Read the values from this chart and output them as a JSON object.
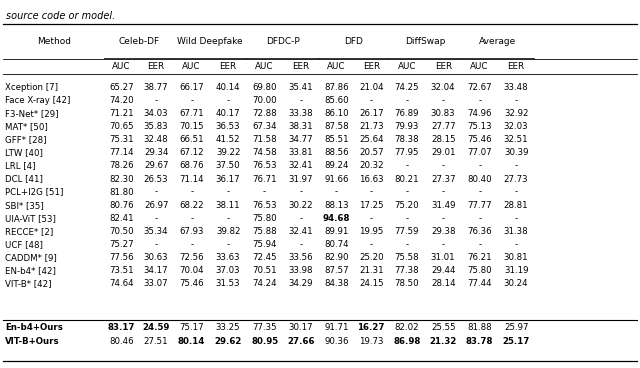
{
  "title_text": "source code or model.",
  "dataset_groups": [
    "Celeb-DF",
    "Wild Deepfake",
    "DFDC-P",
    "DFD",
    "DiffSwap",
    "Average"
  ],
  "rows": [
    [
      "Xception [7]",
      "65.27",
      "38.77",
      "66.17",
      "40.14",
      "69.80",
      "35.41",
      "87.86",
      "21.04",
      "74.25",
      "32.04",
      "72.67",
      "33.48"
    ],
    [
      "Face X-ray [42]",
      "74.20",
      "-",
      "-",
      "-",
      "70.00",
      "-",
      "85.60",
      "-",
      "-",
      "-",
      "-",
      "-"
    ],
    [
      "F3-Net* [29]",
      "71.21",
      "34.03",
      "67.71",
      "40.17",
      "72.88",
      "33.38",
      "86.10",
      "26.17",
      "76.89",
      "30.83",
      "74.96",
      "32.92"
    ],
    [
      "MAT* [50]",
      "70.65",
      "35.83",
      "70.15",
      "36.53",
      "67.34",
      "38.31",
      "87.58",
      "21.73",
      "79.93",
      "27.77",
      "75.13",
      "32.03"
    ],
    [
      "GFF* [28]",
      "75.31",
      "32.48",
      "66.51",
      "41.52",
      "71.58",
      "34.77",
      "85.51",
      "25.64",
      "78.38",
      "28.15",
      "75.46",
      "32.51"
    ],
    [
      "LTW [40]",
      "77.14",
      "29.34",
      "67.12",
      "39.22",
      "74.58",
      "33.81",
      "88.56",
      "20.57",
      "77.95",
      "29.01",
      "77.07",
      "30.39"
    ],
    [
      "LRL [4]",
      "78.26",
      "29.67",
      "68.76",
      "37.50",
      "76.53",
      "32.41",
      "89.24",
      "20.32",
      "-",
      "-",
      "-",
      "-"
    ],
    [
      "DCL [41]",
      "82.30",
      "26.53",
      "71.14",
      "36.17",
      "76.71",
      "31.97",
      "91.66",
      "16.63",
      "80.21",
      "27.37",
      "80.40",
      "27.73"
    ],
    [
      "PCL+I2G [51]",
      "81.80",
      "-",
      "-",
      "-",
      "-",
      "-",
      "-",
      "-",
      "-",
      "-",
      "-",
      "-"
    ],
    [
      "SBI* [35]",
      "80.76",
      "26.97",
      "68.22",
      "38.11",
      "76.53",
      "30.22",
      "88.13",
      "17.25",
      "75.20",
      "31.49",
      "77.77",
      "28.81"
    ],
    [
      "UIA-ViT [53]",
      "82.41",
      "-",
      "-",
      "-",
      "75.80",
      "-",
      "94.68",
      "-",
      "-",
      "-",
      "-",
      "-"
    ],
    [
      "RECCE* [2]",
      "70.50",
      "35.34",
      "67.93",
      "39.82",
      "75.88",
      "32.41",
      "89.91",
      "19.95",
      "77.59",
      "29.38",
      "76.36",
      "31.38"
    ],
    [
      "UCF [48]",
      "75.27",
      "-",
      "-",
      "-",
      "75.94",
      "-",
      "80.74",
      "-",
      "-",
      "-",
      "-",
      "-"
    ],
    [
      "CADDM* [9]",
      "77.56",
      "30.63",
      "72.56",
      "33.63",
      "72.45",
      "33.56",
      "82.90",
      "25.20",
      "75.58",
      "31.01",
      "76.21",
      "30.81"
    ],
    [
      "EN-b4* [42]",
      "73.51",
      "34.17",
      "70.04",
      "37.03",
      "70.51",
      "33.98",
      "87.57",
      "21.31",
      "77.38",
      "29.44",
      "75.80",
      "31.19"
    ],
    [
      "VIT-B* [42]",
      "74.64",
      "33.07",
      "75.46",
      "31.53",
      "74.24",
      "34.29",
      "84.38",
      "24.15",
      "78.50",
      "28.14",
      "77.44",
      "30.24"
    ]
  ],
  "bold_rows": [
    [
      "En-b4+Ours",
      "83.17",
      "24.59",
      "75.17",
      "33.25",
      "77.35",
      "30.17",
      "91.71",
      "16.27",
      "82.02",
      "25.55",
      "81.88",
      "25.97"
    ],
    [
      "VIT-B+Ours",
      "80.46",
      "27.51",
      "80.14",
      "29.62",
      "80.95",
      "27.66",
      "90.36",
      "19.73",
      "86.98",
      "21.32",
      "83.78",
      "25.17"
    ]
  ],
  "bold_cells_en": [
    true,
    true,
    false,
    false,
    false,
    false,
    false,
    true,
    false,
    false,
    false,
    false
  ],
  "bold_cells_vit": [
    false,
    false,
    true,
    true,
    true,
    true,
    false,
    false,
    true,
    true,
    true,
    true
  ]
}
